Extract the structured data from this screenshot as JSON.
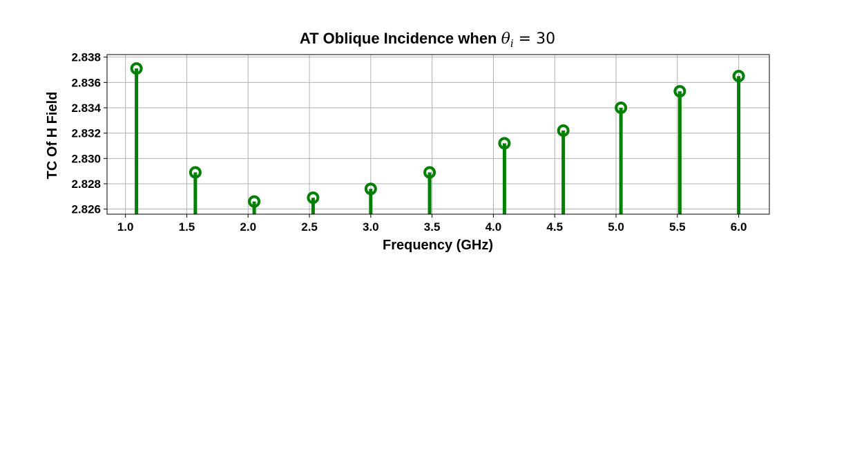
{
  "chart_data": {
    "type": "stem",
    "title": "AT Oblique Incidence when ",
    "title_math": {
      "symbol": "θ",
      "subscript": "i",
      "equals": " = 30"
    },
    "xlabel": "Frequency (GHz)",
    "ylabel": "TC Of H Field",
    "xlim": [
      0.85,
      6.25
    ],
    "ylim": [
      2.8256,
      2.8382
    ],
    "xticks": [
      1.0,
      1.5,
      2.0,
      2.5,
      3.0,
      3.5,
      4.0,
      4.5,
      5.0,
      5.5,
      6.0
    ],
    "xtick_labels": [
      "1.0",
      "1.5",
      "2.0",
      "2.5",
      "3.0",
      "3.5",
      "4.0",
      "4.5",
      "5.0",
      "5.5",
      "6.0"
    ],
    "yticks": [
      2.826,
      2.828,
      2.83,
      2.832,
      2.834,
      2.836,
      2.838
    ],
    "ytick_labels": [
      "2.826",
      "2.828",
      "2.830",
      "2.832",
      "2.834",
      "2.836",
      "2.838"
    ],
    "x": [
      1.09,
      1.57,
      2.05,
      2.53,
      3.0,
      3.48,
      4.09,
      4.57,
      5.04,
      5.52,
      6.0
    ],
    "y": [
      2.8371,
      2.8289,
      2.8266,
      2.8269,
      2.8276,
      2.8289,
      2.8312,
      2.8322,
      2.834,
      2.8353,
      2.8365
    ],
    "grid": true,
    "color": "#008000",
    "marker": "open-circle"
  }
}
